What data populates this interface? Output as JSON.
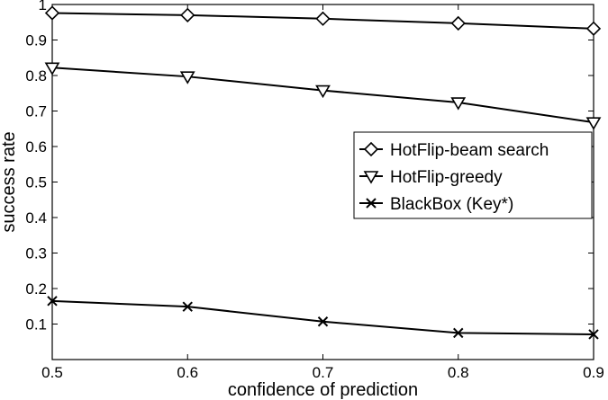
{
  "chart_data": {
    "type": "line",
    "xlabel": "confidence of prediction",
    "ylabel": "success rate",
    "xlim": [
      0.5,
      0.9
    ],
    "ylim": [
      0,
      1
    ],
    "x": [
      0.5,
      0.6,
      0.7,
      0.8,
      0.9
    ],
    "xticks": [
      "0.5",
      "0.6",
      "0.7",
      "0.8",
      "0.9"
    ],
    "yticks": [
      "0.1",
      "0.2",
      "0.3",
      "0.4",
      "0.5",
      "0.6",
      "0.7",
      "0.8",
      "0.9",
      "1"
    ],
    "grid": false,
    "legend_position": "right",
    "series": [
      {
        "name": "HotFlip-beam search",
        "marker": "diamond",
        "color": "#000000",
        "values": [
          0.976,
          0.97,
          0.96,
          0.947,
          0.932
        ]
      },
      {
        "name": "HotFlip-greedy",
        "marker": "triangle-down",
        "color": "#000000",
        "values": [
          0.822,
          0.797,
          0.758,
          0.724,
          0.668
        ]
      },
      {
        "name": "BlackBox (Key*)",
        "marker": "x",
        "color": "#000000",
        "values": [
          0.165,
          0.149,
          0.107,
          0.075,
          0.071
        ]
      }
    ]
  }
}
